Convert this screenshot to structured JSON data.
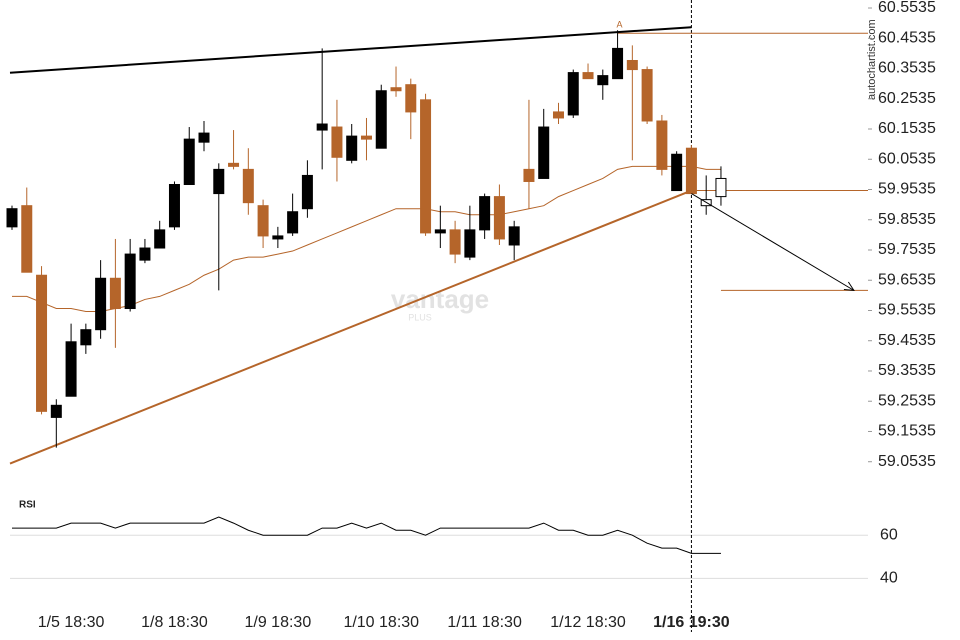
{
  "chart_data": {
    "type": "candlestick",
    "categories": [
      null,
      null,
      null,
      null,
      "1/5 18:30",
      null,
      null,
      null,
      null,
      null,
      null,
      "1/8 18:30",
      null,
      null,
      null,
      null,
      null,
      null,
      "1/9 18:30",
      null,
      null,
      null,
      null,
      null,
      null,
      "1/10 18:30",
      null,
      null,
      null,
      null,
      null,
      null,
      "1/11 18:30",
      null,
      null,
      null,
      null,
      null,
      null,
      "1/12 18:30",
      null,
      null,
      null,
      null,
      null,
      null,
      "1/16 19:30",
      null,
      null
    ],
    "open": [
      59.83,
      59.9,
      59.67,
      59.2,
      59.27,
      59.44,
      59.49,
      59.66,
      59.56,
      59.72,
      59.76,
      59.83,
      59.97,
      60.11,
      59.94,
      60.04,
      60.02,
      59.9,
      59.79,
      59.81,
      59.89,
      60.15,
      60.16,
      60.05,
      60.13,
      60.09,
      60.29,
      60.3,
      60.25,
      59.81,
      59.82,
      59.73,
      59.82,
      59.93,
      59.77,
      60.02,
      59.99,
      60.21,
      60.2,
      60.34,
      60.3,
      60.32,
      60.38,
      60.35,
      60.18,
      59.95,
      60.09,
      59.9,
      59.93
    ],
    "high": [
      59.9,
      59.96,
      59.7,
      59.26,
      59.51,
      59.51,
      59.72,
      59.79,
      59.79,
      59.79,
      59.85,
      59.98,
      60.16,
      60.18,
      60.04,
      60.15,
      60.09,
      59.92,
      59.83,
      59.94,
      60.05,
      60.42,
      60.25,
      60.17,
      60.19,
      60.3,
      60.36,
      60.32,
      60.27,
      59.9,
      59.85,
      59.9,
      59.94,
      59.97,
      59.85,
      60.25,
      60.22,
      60.24,
      60.35,
      60.37,
      60.35,
      60.48,
      60.43,
      60.36,
      60.2,
      60.08,
      60.1,
      60.0,
      60.03
    ],
    "low": [
      59.82,
      59.68,
      59.21,
      59.1,
      59.27,
      59.41,
      59.46,
      59.43,
      59.55,
      59.71,
      59.76,
      59.82,
      59.97,
      60.08,
      59.62,
      60.02,
      59.87,
      59.76,
      59.76,
      59.8,
      59.86,
      60.02,
      59.98,
      60.04,
      60.05,
      60.09,
      60.26,
      60.12,
      59.8,
      59.76,
      59.71,
      59.72,
      59.79,
      59.77,
      59.72,
      59.89,
      59.99,
      60.17,
      60.19,
      60.32,
      60.25,
      60.32,
      60.05,
      60.17,
      60.0,
      59.95,
      59.94,
      59.87,
      59.9
    ],
    "close": [
      59.89,
      59.68,
      59.22,
      59.24,
      59.45,
      59.49,
      59.66,
      59.56,
      59.74,
      59.76,
      59.82,
      59.97,
      60.12,
      60.14,
      60.02,
      60.03,
      59.91,
      59.8,
      59.8,
      59.88,
      60.0,
      60.17,
      60.06,
      60.13,
      60.12,
      60.28,
      60.28,
      60.21,
      59.81,
      59.82,
      59.74,
      59.82,
      59.93,
      59.79,
      59.83,
      59.98,
      60.16,
      60.19,
      60.34,
      60.32,
      60.33,
      60.42,
      60.35,
      60.18,
      60.02,
      60.07,
      59.94,
      59.92,
      59.99
    ],
    "colors": [
      "#000000",
      "#b5652a",
      "#b5652a",
      "#000000",
      "#000000",
      "#000000",
      "#000000",
      "#b5652a",
      "#000000",
      "#000000",
      "#000000",
      "#000000",
      "#000000",
      "#000000",
      "#000000",
      "#b5652a",
      "#b5652a",
      "#b5652a",
      "#000000",
      "#000000",
      "#000000",
      "#000000",
      "#b5652a",
      "#000000",
      "#b5652a",
      "#000000",
      "#b5652a",
      "#b5652a",
      "#b5652a",
      "#000000",
      "#b5652a",
      "#000000",
      "#000000",
      "#b5652a",
      "#000000",
      "#b5652a",
      "#000000",
      "#b5652a",
      "#000000",
      "#b5652a",
      "#000000",
      "#000000",
      "#b5652a",
      "#b5652a",
      "#b5652a",
      "#000000",
      "#b5652a",
      "#ffffff",
      "#ffffff"
    ],
    "ylim": [
      58.96,
      60.58
    ],
    "yticks": [
      59.0535,
      59.1535,
      59.2535,
      59.3535,
      59.4535,
      59.5535,
      59.6535,
      59.7535,
      59.8535,
      59.9535,
      60.0535,
      60.1535,
      60.2535,
      60.3535,
      60.4535,
      60.5535
    ],
    "moving_average": {
      "color": "#b5652a",
      "values": [
        59.6,
        59.6,
        59.58,
        59.56,
        59.56,
        59.55,
        59.55,
        59.56,
        59.57,
        59.59,
        59.6,
        59.62,
        59.64,
        59.67,
        59.69,
        59.72,
        59.73,
        59.73,
        59.74,
        59.75,
        59.77,
        59.79,
        59.81,
        59.83,
        59.85,
        59.87,
        59.89,
        59.89,
        59.89,
        59.88,
        59.88,
        59.87,
        59.87,
        59.87,
        59.88,
        59.89,
        59.9,
        59.93,
        59.95,
        59.97,
        59.99,
        60.02,
        60.03,
        60.03,
        60.03,
        60.03,
        60.03,
        60.02,
        60.02
      ]
    },
    "trend_lines": [
      {
        "color": "#000000",
        "x": [
          0,
          46
        ],
        "y": [
          60.34,
          60.49
        ]
      },
      {
        "color": "#b5652a",
        "x": [
          0,
          46
        ],
        "y": [
          59.05,
          59.95
        ]
      }
    ],
    "levels": [
      {
        "color": "#b5652a",
        "value": 60.47,
        "from": 41
      },
      {
        "color": "#b5652a",
        "value": 59.95,
        "from": 46
      },
      {
        "color": "#b5652a",
        "value": 59.62,
        "from": 48
      }
    ],
    "arrow": {
      "color": "#000000",
      "x": [
        46,
        57
      ],
      "y": [
        59.94,
        59.62
      ]
    },
    "current_index": 46,
    "pattern_label": {
      "text": "A",
      "index": 41,
      "color": "#b5652a"
    },
    "source": "autochartist.com",
    "watermark": "vantage",
    "watermark_sub": "PLUS",
    "rsi": {
      "label": "RSI",
      "color": "#000000",
      "values": [
        63.3,
        63.3,
        63.3,
        63.3,
        65.6,
        65.6,
        65.6,
        63.3,
        65.6,
        65.6,
        65.6,
        65.6,
        65.6,
        65.6,
        68.4,
        65.6,
        62.3,
        60,
        60,
        60,
        60,
        63.3,
        63.3,
        65.6,
        63.3,
        65.6,
        62.3,
        62.3,
        60,
        63.3,
        63.3,
        63.3,
        63.3,
        63.3,
        63.3,
        63.3,
        65.6,
        62.3,
        62.3,
        60,
        60,
        62.3,
        60,
        56.3,
        54,
        54,
        51.6,
        51.6,
        51.6
      ],
      "ylim": [
        30,
        80
      ],
      "yticks": [
        60,
        40
      ],
      "grid": true
    }
  }
}
